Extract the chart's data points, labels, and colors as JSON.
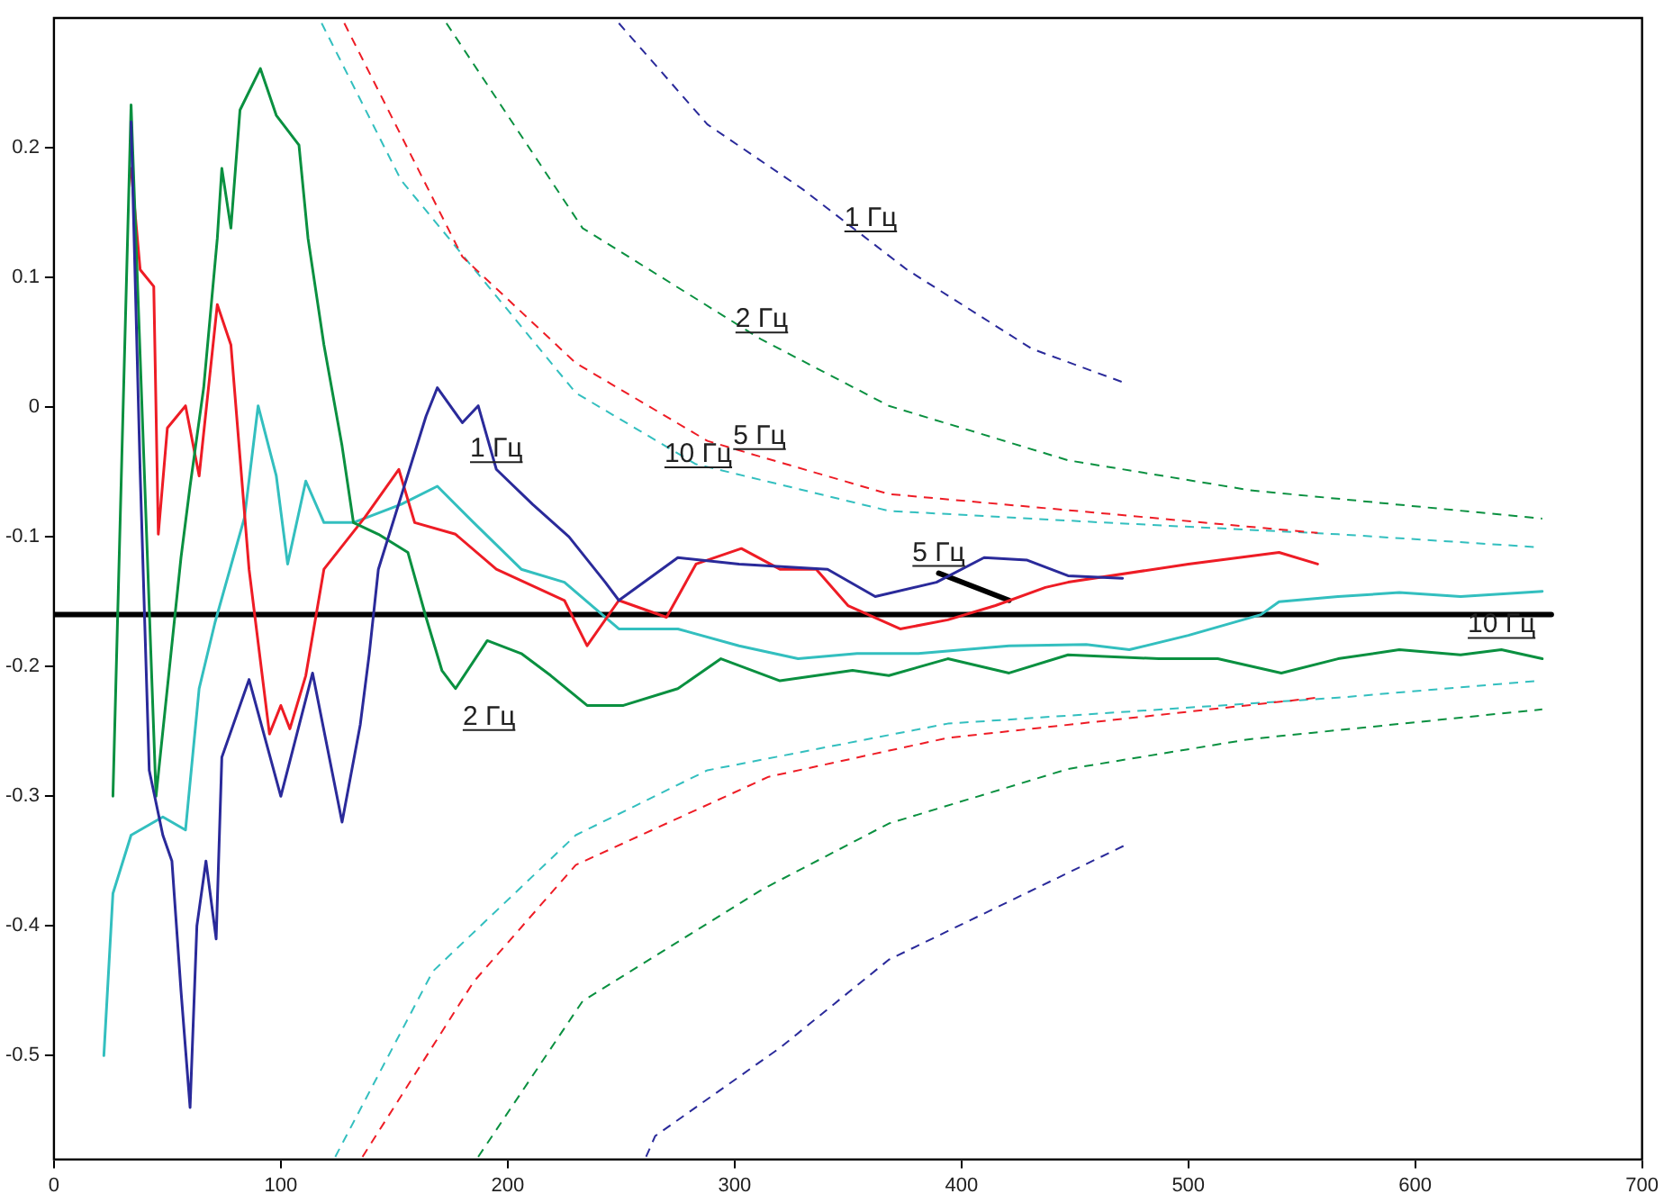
{
  "chart_data": {
    "type": "line",
    "xlim": [
      0,
      700
    ],
    "xticks": [
      0,
      100,
      200,
      300,
      400,
      500,
      600,
      700
    ],
    "ylim": [
      -0.58,
      0.3
    ],
    "yticks": [
      -0.5,
      -0.4,
      -0.3,
      -0.2,
      -0.1,
      0,
      0.1,
      0.2
    ],
    "grid": false,
    "legend": false,
    "marker": "none",
    "series": [
      {
        "color": "#2a2a9a",
        "x": [
          34,
          38,
          42,
          48,
          52,
          56,
          60,
          63,
          67,
          71.5,
          74,
          86,
          100,
          114,
          127,
          135,
          139,
          143,
          164,
          169,
          180,
          187,
          195,
          211,
          227,
          243,
          249,
          275,
          302,
          341,
          362,
          389,
          410,
          429,
          447,
          471
        ],
        "values": [
          0.22,
          -0.05,
          -0.28,
          -0.33,
          -0.35,
          -0.45,
          -0.54,
          -0.4,
          -0.35,
          -0.41,
          -0.27,
          -0.21,
          -0.3,
          -0.205,
          -0.32,
          -0.245,
          -0.19,
          -0.125,
          -0.007,
          0.015,
          -0.012,
          0.001,
          -0.048,
          -0.075,
          -0.1,
          -0.135,
          -0.149,
          -0.116,
          -0.121,
          -0.125,
          -0.146,
          -0.135,
          -0.116,
          -0.118,
          -0.13,
          -0.132
        ]
      },
      {
        "color": "#0a9040",
        "x": [
          26,
          34,
          45,
          56,
          60,
          66,
          72,
          74,
          78,
          82,
          91,
          98,
          108,
          112,
          119,
          127,
          132,
          143,
          156,
          164,
          171,
          177,
          191,
          206,
          219,
          235,
          251,
          275,
          294,
          320,
          352,
          368,
          394,
          421,
          447,
          487,
          513,
          541,
          566,
          593,
          620,
          638,
          656
        ],
        "values": [
          -0.3,
          0.233,
          -0.3,
          -0.116,
          -0.061,
          0.015,
          0.13,
          0.184,
          0.138,
          0.229,
          0.261,
          0.225,
          0.202,
          0.13,
          0.048,
          -0.03,
          -0.089,
          -0.098,
          -0.112,
          -0.162,
          -0.203,
          -0.217,
          -0.18,
          -0.19,
          -0.207,
          -0.23,
          -0.23,
          -0.217,
          -0.194,
          -0.211,
          -0.203,
          -0.207,
          -0.194,
          -0.205,
          -0.191,
          -0.194,
          -0.194,
          -0.205,
          -0.194,
          -0.187,
          -0.191,
          -0.187,
          -0.194
        ]
      },
      {
        "color": "#ee1c25",
        "x": [
          34,
          38,
          44,
          46,
          50,
          58,
          64,
          72,
          78,
          86,
          95,
          100,
          104,
          111,
          119,
          137,
          152,
          159,
          177,
          195,
          225,
          235,
          249,
          270,
          283,
          303,
          320,
          336,
          350,
          373,
          394,
          415,
          437,
          447,
          500,
          540,
          557
        ],
        "values": [
          0.184,
          0.106,
          0.093,
          -0.098,
          -0.016,
          0.001,
          -0.053,
          0.079,
          0.048,
          -0.125,
          -0.252,
          -0.23,
          -0.248,
          -0.207,
          -0.125,
          -0.085,
          -0.048,
          -0.089,
          -0.098,
          -0.125,
          -0.149,
          -0.184,
          -0.149,
          -0.162,
          -0.121,
          -0.109,
          -0.125,
          -0.125,
          -0.153,
          -0.171,
          -0.164,
          -0.153,
          -0.139,
          -0.135,
          -0.121,
          -0.112,
          -0.121
        ]
      },
      {
        "color": "#33bfbf",
        "x": [
          22,
          26,
          34,
          48,
          58,
          64,
          71,
          84,
          90,
          98,
          103,
          111,
          119,
          132,
          153,
          169,
          185,
          206,
          225,
          249,
          275,
          302,
          328,
          354,
          381,
          421,
          455,
          474,
          500,
          532,
          540,
          566,
          593,
          620,
          656
        ],
        "values": [
          -0.5,
          -0.375,
          -0.33,
          -0.316,
          -0.326,
          -0.217,
          -0.166,
          -0.085,
          0.001,
          -0.053,
          -0.121,
          -0.057,
          -0.089,
          -0.089,
          -0.075,
          -0.061,
          -0.089,
          -0.125,
          -0.135,
          -0.171,
          -0.171,
          -0.184,
          -0.194,
          -0.19,
          -0.19,
          -0.184,
          -0.183,
          -0.187,
          -0.176,
          -0.16,
          -0.15,
          -0.146,
          -0.143,
          -0.146,
          -0.142
        ]
      },
      {
        "color": "#2a2a9a",
        "line_style": "dashed",
        "x": [
          249,
          288,
          330,
          376,
          431,
          473
        ],
        "values": [
          0.296,
          0.218,
          0.168,
          0.106,
          0.045,
          0.018
        ]
      },
      {
        "color": "#2a2a9a",
        "line_style": "dashed",
        "x": [
          261,
          265,
          320,
          368,
          473
        ],
        "values": [
          -0.578,
          -0.562,
          -0.494,
          -0.426,
          -0.337
        ]
      },
      {
        "color": "#0a9040",
        "line_style": "dashed",
        "x": [
          173,
          233,
          312,
          368,
          447,
          527,
          656
        ],
        "values": [
          0.296,
          0.138,
          0.052,
          0.001,
          -0.041,
          -0.064,
          -0.086
        ]
      },
      {
        "color": "#0a9040",
        "line_style": "dashed",
        "x": [
          187,
          233,
          312,
          368,
          447,
          527,
          656
        ],
        "values": [
          -0.578,
          -0.458,
          -0.372,
          -0.321,
          -0.279,
          -0.256,
          -0.233
        ]
      },
      {
        "color": "#ee1c25",
        "line_style": "dashed",
        "x": [
          128,
          180,
          230,
          288,
          311,
          368,
          463,
          557
        ],
        "values": [
          0.296,
          0.116,
          0.034,
          -0.026,
          -0.038,
          -0.067,
          -0.082,
          -0.097
        ]
      },
      {
        "color": "#ee1c25",
        "line_style": "dashed",
        "x": [
          136,
          185,
          230,
          315,
          394,
          557
        ],
        "values": [
          -0.578,
          -0.443,
          -0.353,
          -0.285,
          -0.255,
          -0.224
        ]
      },
      {
        "color": "#33bfbf",
        "line_style": "dashed",
        "x": [
          118,
          153,
          230,
          283,
          368,
          463,
          566,
          654
        ],
        "values": [
          0.296,
          0.175,
          0.011,
          -0.044,
          -0.08,
          -0.089,
          -0.098,
          -0.108
        ]
      },
      {
        "color": "#33bfbf",
        "line_style": "dashed",
        "x": [
          124,
          167,
          230,
          288,
          394,
          566,
          654
        ],
        "values": [
          -0.578,
          -0.435,
          -0.33,
          -0.28,
          -0.244,
          -0.224,
          -0.211
        ]
      },
      {
        "color": "#000000",
        "x": [
          0,
          660
        ],
        "values": [
          -0.16,
          -0.16
        ]
      },
      {
        "color": "#000000",
        "x": [
          390,
          421
        ],
        "values": [
          -0.128,
          -0.149
        ]
      }
    ],
    "annotations": [
      {
        "text": "1 Гц",
        "x": 360,
        "y": 0.13
      },
      {
        "text": "2 Гц",
        "x": 312,
        "y": 0.052
      },
      {
        "text": "5 Гц",
        "x": 311,
        "y": -0.038
      },
      {
        "text": "10 Гц",
        "x": 284,
        "y": -0.052
      },
      {
        "text": "1 Гц",
        "x": 195,
        "y": -0.048
      },
      {
        "text": "2 Гц",
        "x": 177,
        "y": -0.217
      },
      {
        "text": "5 Гц",
        "x": 390,
        "y": -0.128
      },
      {
        "text": "10 Гц",
        "x": 620,
        "y": -0.146
      }
    ]
  }
}
